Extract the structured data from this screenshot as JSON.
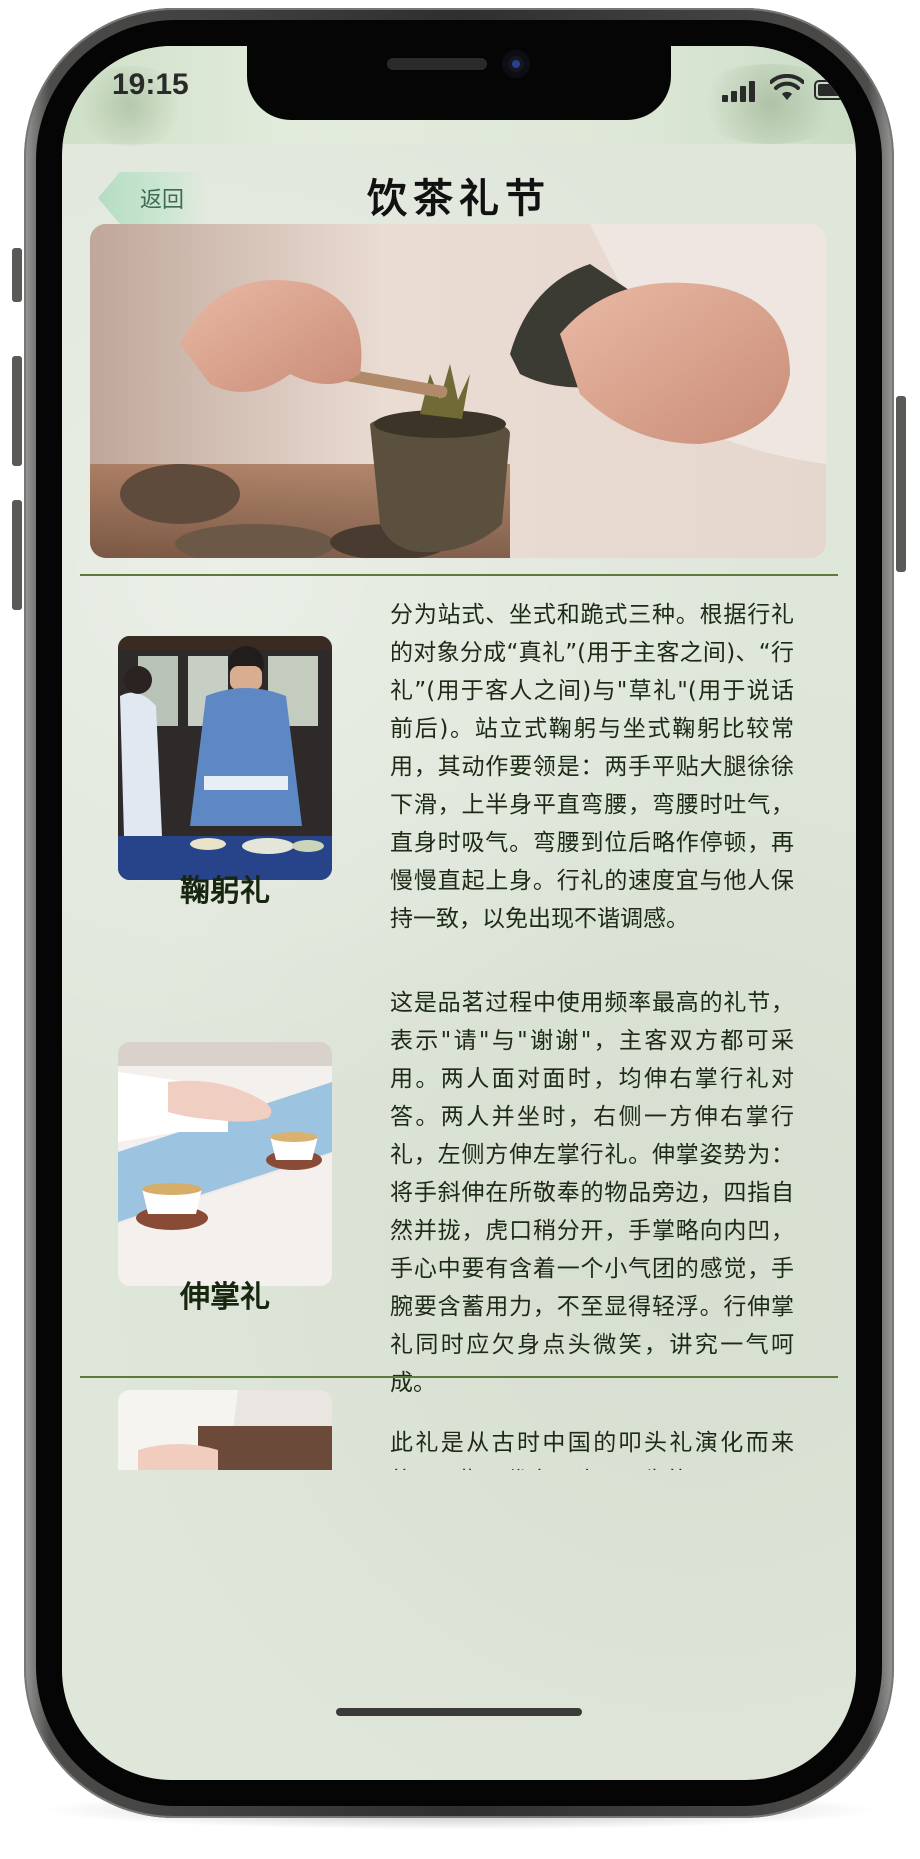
{
  "status": {
    "time": "19:15"
  },
  "nav": {
    "back_label": "返回",
    "title": "饮茶礼节"
  },
  "sections": [
    {
      "title": "鞠躬礼",
      "description": "分为站式、坐式和跪式三种。根据行礼的对象分成“真礼”(用于主客之间)、“行礼”(用于客人之间)与\"草礼\"(用于说话前后)。站立式鞠躬与坐式鞠躬比较常用，其动作要领是：两手平贴大腿徐徐下滑，上半身平直弯腰，弯腰时吐气，直身时吸气。弯腰到位后略作停顿，再慢慢直起上身。行礼的速度宜与他人保持一致，以免出现不谐调感。"
    },
    {
      "title": "伸掌礼",
      "description": "这是品茗过程中使用频率最高的礼节，表示\"请\"与\"谢谢\"，主客双方都可采用。两人面对面时，均伸右掌行礼对答。两人并坐时，右侧一方伸右掌行礼，左侧方伸左掌行礼。伸掌姿势为：将手斜伸在所敬奉的物品旁边，四指自然并拢，虎口稍分开，手掌略向内凹，手心中要有含着一个小气团的感觉，手腕要含蓄用力，不至显得轻浮。行伸掌礼同时应欠身点头微笑，讲究一气呵成。"
    },
    {
      "description": "此礼是从古时中国的叩头礼演化而来的，叩指即代表叩头。早先的叩"
    }
  ]
}
